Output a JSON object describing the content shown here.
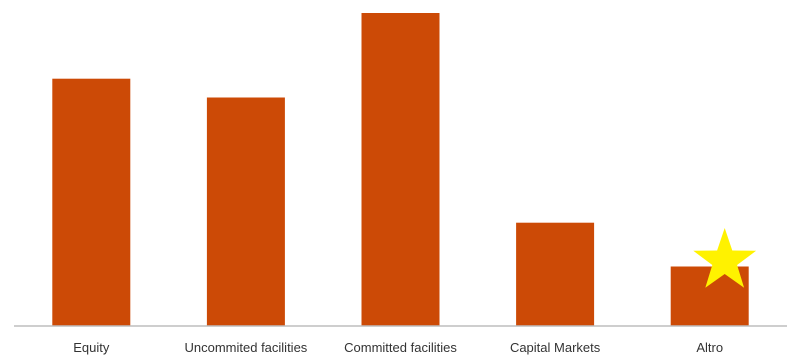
{
  "chart_data": {
    "type": "bar",
    "categories": [
      "Equity",
      "Uncommited facilities",
      "Committed facilities",
      "Capital Markets",
      "Altro"
    ],
    "values": [
      79,
      73,
      100,
      33,
      19
    ],
    "ylim": [
      0,
      100
    ],
    "grid": false,
    "legend": "none",
    "bar_color": "#CC4A06",
    "axis_color": "#BDBDBD",
    "highlight": {
      "category": "Altro",
      "icon": "star-icon",
      "color": "#FFF200"
    }
  }
}
